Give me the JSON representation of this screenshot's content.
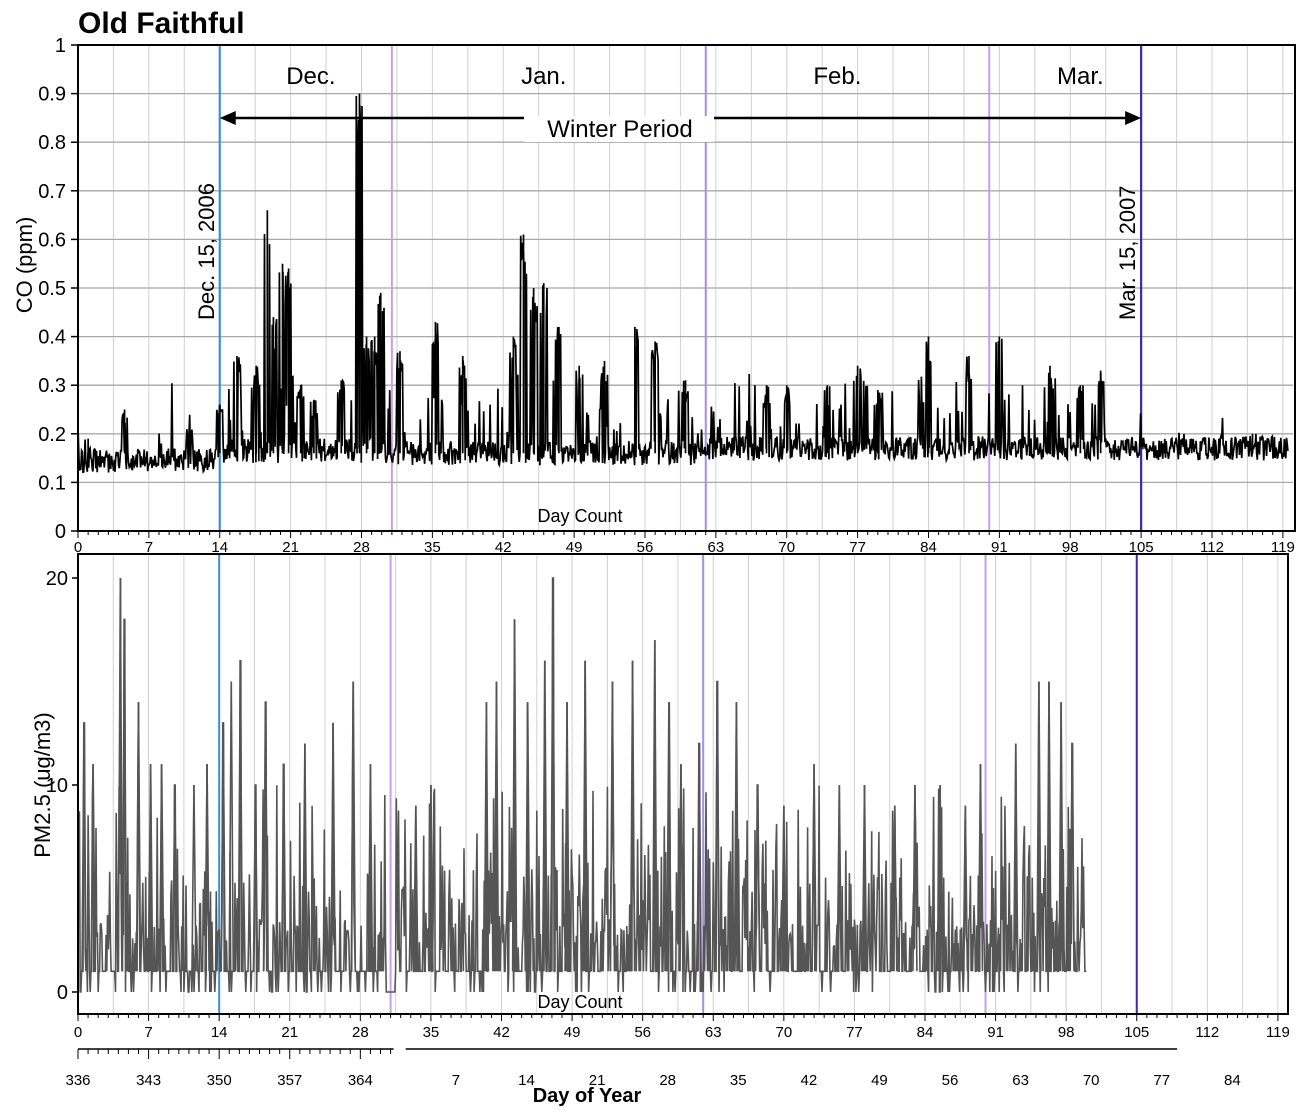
{
  "figure_title": "Old Faithful",
  "colors": {
    "dec15_line": "#3c8fd6",
    "month_boundary": "#c3a0ee",
    "feb_boundary": "#a98ce6",
    "mar15_line": "#3a28b0",
    "co_series": "#000000",
    "pm_series": "#555555",
    "grid": "#d0d0d0"
  },
  "chart_data": [
    {
      "type": "line",
      "ylabel": "CO (ppm)",
      "xlabel": "Day Count",
      "xlim": [
        0,
        120
      ],
      "ylim": [
        0,
        1
      ],
      "y_ticks": [
        "0",
        "0.1",
        "0.2",
        "0.3",
        "0.4",
        "0.5",
        "0.6",
        "0.7",
        "0.8",
        "0.9",
        "1"
      ],
      "x_ticks": [
        "0",
        "7",
        "14",
        "21",
        "28",
        "35",
        "42",
        "49",
        "56",
        "63",
        "70",
        "77",
        "84",
        "91",
        "98",
        "105",
        "112",
        "119"
      ],
      "grid": true,
      "month_labels": [
        {
          "label": "Dec.",
          "x": 23
        },
        {
          "label": "Jan.",
          "x": 46
        },
        {
          "label": "Feb.",
          "x": 75
        },
        {
          "label": "Mar.",
          "x": 99
        }
      ],
      "vertical_markers": [
        {
          "x": 14,
          "label": "Dec. 15, 2006",
          "kind": "dec15"
        },
        {
          "x": 31,
          "label": "",
          "kind": "month"
        },
        {
          "x": 62,
          "label": "",
          "kind": "feb"
        },
        {
          "x": 90,
          "label": "",
          "kind": "month"
        },
        {
          "x": 105,
          "label": "Mar. 15, 2007",
          "kind": "mar15"
        }
      ],
      "winter_period": {
        "label": "Winter Period",
        "start": 14,
        "end": 105
      },
      "baseline": 0.15,
      "peaks": [
        [
          1.0,
          0.19
        ],
        [
          4.6,
          0.25
        ],
        [
          11.0,
          0.21
        ],
        [
          14.0,
          0.26
        ],
        [
          15.7,
          0.36
        ],
        [
          17.6,
          0.34
        ],
        [
          18.7,
          0.66
        ],
        [
          19.3,
          0.44
        ],
        [
          20.2,
          0.55
        ],
        [
          20.8,
          0.54
        ],
        [
          22.0,
          0.3
        ],
        [
          23.3,
          0.27
        ],
        [
          26.0,
          0.31
        ],
        [
          27.8,
          0.9
        ],
        [
          28.5,
          0.4
        ],
        [
          29.3,
          0.4
        ],
        [
          29.9,
          0.49
        ],
        [
          31.8,
          0.37
        ],
        [
          35.3,
          0.43
        ],
        [
          38.0,
          0.36
        ],
        [
          43.0,
          0.4
        ],
        [
          44.0,
          0.61
        ],
        [
          45.0,
          0.5
        ],
        [
          46.0,
          0.51
        ],
        [
          47.5,
          0.42
        ],
        [
          49.5,
          0.34
        ],
        [
          52.0,
          0.35
        ],
        [
          55.0,
          0.42
        ],
        [
          57.0,
          0.39
        ],
        [
          60.0,
          0.31
        ],
        [
          68.0,
          0.3
        ],
        [
          70.0,
          0.3
        ],
        [
          74.0,
          0.3
        ],
        [
          77.0,
          0.34
        ],
        [
          79.0,
          0.29
        ],
        [
          84.0,
          0.4
        ],
        [
          88.0,
          0.36
        ],
        [
          91.0,
          0.4
        ],
        [
          96.0,
          0.34
        ],
        [
          99.0,
          0.3
        ],
        [
          101.0,
          0.33
        ],
        [
          110.0,
          0.19
        ],
        [
          116.0,
          0.2
        ]
      ]
    },
    {
      "type": "line",
      "ylabel": "PM2.5 (ug/m3)",
      "xlabel": "Day Count",
      "xlabel2": "Day of Year",
      "xlim": [
        0,
        120
      ],
      "ylim": [
        0,
        20
      ],
      "y_ticks": [
        "0",
        "10",
        "20"
      ],
      "x_ticks": [
        "0",
        "7",
        "14",
        "21",
        "28",
        "35",
        "42",
        "49",
        "56",
        "63",
        "70",
        "77",
        "84",
        "91",
        "98",
        "105",
        "112",
        "119"
      ],
      "doy_ticks": [
        "336",
        "343",
        "350",
        "357",
        "364",
        "7",
        "14",
        "21",
        "28",
        "35",
        "42",
        "49",
        "56",
        "63",
        "70",
        "77",
        "84"
      ],
      "doy_positions": [
        0,
        7,
        14,
        21,
        28,
        35,
        42,
        49,
        56,
        63,
        70,
        77,
        84,
        91,
        98,
        105,
        112
      ],
      "grid": true,
      "vertical_markers": [
        {
          "x": 14,
          "kind": "dec15"
        },
        {
          "x": 31,
          "kind": "month"
        },
        {
          "x": 62,
          "kind": "feb"
        },
        {
          "x": 90,
          "kind": "month"
        },
        {
          "x": 105,
          "kind": "mar15"
        }
      ],
      "data_end": 100,
      "peaks": [
        [
          0.6,
          13
        ],
        [
          1.5,
          11
        ],
        [
          4.2,
          20
        ],
        [
          4.6,
          18
        ],
        [
          6.0,
          14
        ],
        [
          7.2,
          11
        ],
        [
          8.3,
          11
        ],
        [
          9.6,
          10
        ],
        [
          11.5,
          10
        ],
        [
          12.8,
          11
        ],
        [
          14.4,
          13
        ],
        [
          15.2,
          15
        ],
        [
          16.1,
          16
        ],
        [
          17.6,
          10
        ],
        [
          18.6,
          14
        ],
        [
          20.4,
          11
        ],
        [
          22.5,
          12
        ],
        [
          25.3,
          13
        ],
        [
          27.3,
          15
        ],
        [
          29.0,
          11
        ],
        [
          33.5,
          9
        ],
        [
          35.0,
          10
        ],
        [
          40.5,
          14
        ],
        [
          41.5,
          15
        ],
        [
          43.3,
          18
        ],
        [
          44.6,
          14
        ],
        [
          46.3,
          16
        ],
        [
          47.1,
          20
        ],
        [
          48.5,
          14
        ],
        [
          50.3,
          16
        ],
        [
          53.0,
          15
        ],
        [
          55.0,
          16
        ],
        [
          57.2,
          17
        ],
        [
          58.6,
          14
        ],
        [
          59.8,
          11
        ],
        [
          61.6,
          12
        ],
        [
          63.4,
          15
        ],
        [
          65.3,
          14
        ],
        [
          67.4,
          10
        ],
        [
          70.0,
          9
        ],
        [
          73.0,
          11
        ],
        [
          75.5,
          10
        ],
        [
          78.0,
          10
        ],
        [
          81.0,
          9
        ],
        [
          83.0,
          10
        ],
        [
          85.5,
          10
        ],
        [
          88.0,
          9
        ],
        [
          89.5,
          11
        ],
        [
          93.0,
          12
        ],
        [
          95.3,
          15
        ],
        [
          96.3,
          15
        ],
        [
          97.5,
          14
        ],
        [
          98.6,
          12
        ]
      ]
    }
  ]
}
